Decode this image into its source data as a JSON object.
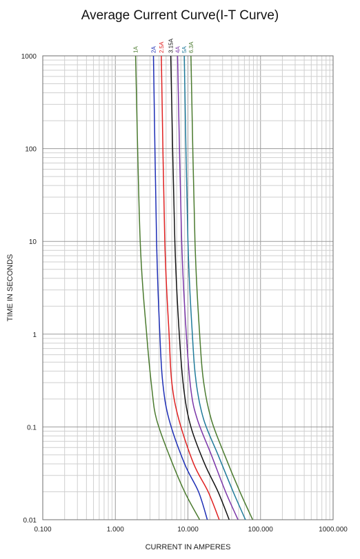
{
  "chart_data": {
    "type": "line",
    "title": "Average Current Curve(I-T Curve)",
    "xlabel": "CURRENT IN AMPERES",
    "ylabel": "TIME IN SECONDS",
    "x_scale": "log",
    "y_scale": "log",
    "xlim": [
      0.1,
      1000
    ],
    "ylim": [
      0.01,
      1000
    ],
    "x_ticks": [
      0.1,
      1,
      10,
      100,
      1000
    ],
    "x_tick_labels": [
      "0.100",
      "1.000",
      "10.000",
      "100.000",
      "1000.000"
    ],
    "y_ticks": [
      0.01,
      0.1,
      1,
      10,
      100,
      1000
    ],
    "y_tick_labels": [
      "0.01",
      "0.1",
      "1",
      "10",
      "100",
      "1000"
    ],
    "grid": true,
    "legend": "series labels at top of curves",
    "series": [
      {
        "name": "1A",
        "color": "#4a7a2e",
        "points": [
          [
            1.9,
            1000
          ],
          [
            2.2,
            10
          ],
          [
            2.7,
            1
          ],
          [
            3.2,
            0.25
          ],
          [
            3.7,
            0.12
          ],
          [
            5.5,
            0.05
          ],
          [
            9.0,
            0.02
          ],
          [
            14.5,
            0.01
          ]
        ]
      },
      {
        "name": "2A",
        "color": "#1c2db5",
        "points": [
          [
            3.35,
            1000
          ],
          [
            3.7,
            10
          ],
          [
            4.1,
            1
          ],
          [
            4.5,
            0.3
          ],
          [
            5.5,
            0.12
          ],
          [
            9.0,
            0.04
          ],
          [
            14.0,
            0.02
          ],
          [
            18.5,
            0.01
          ]
        ]
      },
      {
        "name": "2.5A",
        "color": "#e02020",
        "points": [
          [
            4.3,
            1000
          ],
          [
            4.8,
            10
          ],
          [
            5.5,
            1
          ],
          [
            6.0,
            0.3
          ],
          [
            7.5,
            0.12
          ],
          [
            12.0,
            0.04
          ],
          [
            19.0,
            0.02
          ],
          [
            27.0,
            0.01
          ]
        ]
      },
      {
        "name": "3.15A",
        "color": "#111111",
        "points": [
          [
            5.8,
            1000
          ],
          [
            6.6,
            10
          ],
          [
            7.6,
            1
          ],
          [
            8.8,
            0.25
          ],
          [
            11.0,
            0.1
          ],
          [
            17.0,
            0.04
          ],
          [
            26.0,
            0.02
          ],
          [
            37.0,
            0.01
          ]
        ]
      },
      {
        "name": "4A",
        "color": "#7a35a8",
        "points": [
          [
            7.2,
            1000
          ],
          [
            8.2,
            10
          ],
          [
            9.5,
            1
          ],
          [
            11.0,
            0.25
          ],
          [
            13.5,
            0.12
          ],
          [
            21.0,
            0.05
          ],
          [
            33.0,
            0.02
          ],
          [
            49.0,
            0.01
          ]
        ]
      },
      {
        "name": "5A",
        "color": "#1e7a9a",
        "points": [
          [
            8.9,
            1000
          ],
          [
            10.0,
            10
          ],
          [
            11.5,
            1
          ],
          [
            13.0,
            0.3
          ],
          [
            16.5,
            0.12
          ],
          [
            26.0,
            0.05
          ],
          [
            42.0,
            0.02
          ],
          [
            62.0,
            0.01
          ]
        ]
      },
      {
        "name": "6.3A",
        "color": "#4a7a2e",
        "points": [
          [
            11.0,
            1000
          ],
          [
            12.5,
            10
          ],
          [
            14.5,
            1
          ],
          [
            16.5,
            0.3
          ],
          [
            21.0,
            0.12
          ],
          [
            32.0,
            0.05
          ],
          [
            52.0,
            0.02
          ],
          [
            78.0,
            0.01
          ]
        ]
      }
    ]
  }
}
